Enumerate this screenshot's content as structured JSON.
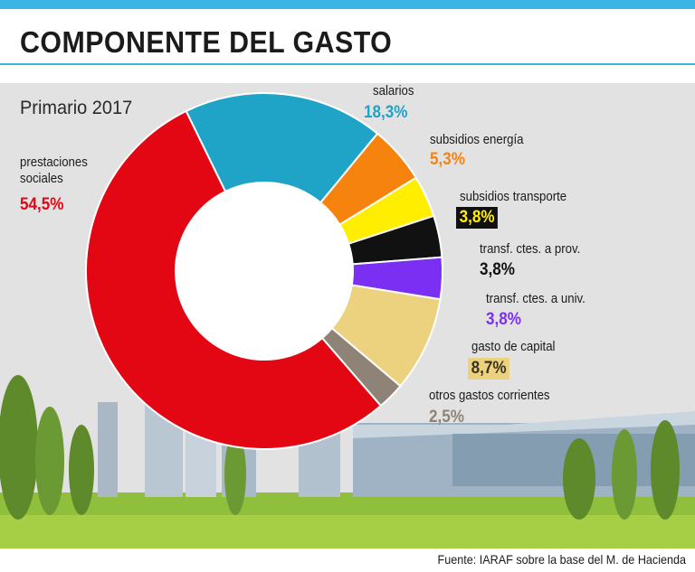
{
  "header": {
    "title": "COMPONENTE DEL GASTO",
    "subtitle": "Primario 2017"
  },
  "footer": {
    "source": "Fuente: IARAF sobre la base del M. de Hacienda"
  },
  "colors": {
    "accent": "#3bb5e3"
  },
  "chart_data": {
    "type": "pie",
    "style": "donut",
    "title": "COMPONENTE DEL GASTO",
    "subtitle": "Primario 2017",
    "slices": [
      {
        "label": "salarios",
        "value": 18.3,
        "display": "18,3%",
        "color": "#1fa3c7"
      },
      {
        "label": "subsidios energía",
        "value": 5.3,
        "display": "5,3%",
        "color": "#f7830f"
      },
      {
        "label": "subsidios transporte",
        "value": 3.8,
        "display": "3,8%",
        "color": "#ffee00"
      },
      {
        "label": "transf. ctes. a prov.",
        "value": 3.8,
        "display": "3,8%",
        "color": "#111111"
      },
      {
        "label": "transf. ctes. a univ.",
        "value": 3.8,
        "display": "3,8%",
        "color": "#7b2ff2"
      },
      {
        "label": "gasto de capital",
        "value": 8.7,
        "display": "8,7%",
        "color": "#ecd27f"
      },
      {
        "label": "otros gastos corrientes",
        "value": 2.5,
        "display": "2,5%",
        "color": "#8f8378"
      },
      {
        "label": "prestaciones sociales",
        "value": 54.5,
        "display": "54,5%",
        "color": "#e30613"
      }
    ]
  }
}
